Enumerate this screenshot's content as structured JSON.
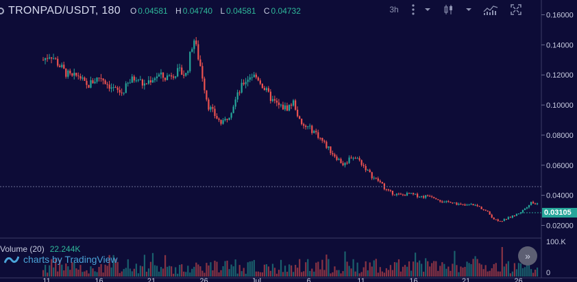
{
  "header": {
    "symbol": "TRONPAD/USDT, 180",
    "ohlc": [
      {
        "key": "O",
        "value": "0.04581"
      },
      {
        "key": "H",
        "value": "0.04740"
      },
      {
        "key": "L",
        "value": "0.04581"
      },
      {
        "key": "C",
        "value": "0.04732"
      }
    ]
  },
  "toolbar": {
    "interval": "3h",
    "icons": [
      "more-vert-icon",
      "dropdown-caret-icon",
      "candlestick-icon",
      "dropdown-caret-icon",
      "indicators-icon",
      "fullscreen-icon"
    ]
  },
  "price_axis": {
    "ticks": [
      "0.16000",
      "0.14000",
      "0.12000",
      "0.10000",
      "0.08000",
      "0.06000",
      "0.04000",
      "0.02000"
    ],
    "current_price": "0.03105"
  },
  "time_axis": {
    "ticks": [
      "11",
      "16",
      "21",
      "26",
      "Jul",
      "6",
      "11",
      "16",
      "21",
      "26"
    ]
  },
  "volume": {
    "label": "Volume (20)",
    "value": "22.244K",
    "axis_ticks": [
      "100.K",
      "0"
    ]
  },
  "branding": {
    "text": "charts by TradingView"
  },
  "scroll_button": {
    "glyph": "»"
  },
  "colors": {
    "background": "#0d0c37",
    "up": "#26a69a",
    "down": "#ef5350",
    "axis_text": "#c8cce0",
    "price_tag": "#26a69a"
  },
  "chart_data": {
    "type": "candlestick",
    "ylim": [
      0.012,
      0.168
    ],
    "price_path": [
      [
        0.13,
        0.134,
        0.128,
        0.122,
        0.118,
        0.12,
        0.112,
        0.116,
        0.119,
        0.114
      ],
      [
        0.11,
        0.108,
        0.115,
        0.119,
        0.113,
        0.117,
        0.12,
        0.118,
        0.121,
        0.122
      ],
      [
        0.12,
        0.145,
        0.125,
        0.1,
        0.093,
        0.087,
        0.094,
        0.105,
        0.115,
        0.12
      ],
      [
        0.118,
        0.11,
        0.103,
        0.099,
        0.098,
        0.102,
        0.086,
        0.085,
        0.082,
        0.076
      ],
      [
        0.07,
        0.065,
        0.06,
        0.066,
        0.064,
        0.058,
        0.052,
        0.049,
        0.043,
        0.041
      ],
      [
        0.04,
        0.041,
        0.04,
        0.039,
        0.04,
        0.038,
        0.035,
        0.036,
        0.034,
        0.033
      ],
      [
        0.034,
        0.032,
        0.029,
        0.024,
        0.023,
        0.025,
        0.027,
        0.03,
        0.035,
        0.034
      ]
    ],
    "volume_max_k": 100
  }
}
